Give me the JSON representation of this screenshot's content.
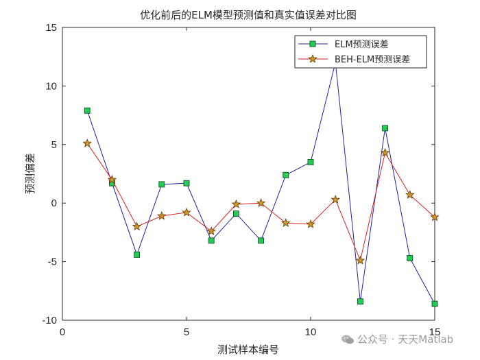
{
  "chart_data": {
    "type": "line",
    "title": "优化前后的ELM模型预测值和真实值误差对比图",
    "xlabel": "测试样本编号",
    "ylabel": "预测偏差",
    "xlim": [
      0,
      15
    ],
    "ylim": [
      -10,
      15
    ],
    "xticks": [
      0,
      5,
      10,
      15
    ],
    "yticks": [
      -10,
      -5,
      0,
      5,
      10,
      15
    ],
    "grid": false,
    "legend_position": "top-right",
    "x": [
      1,
      2,
      3,
      4,
      5,
      6,
      7,
      8,
      9,
      10,
      11,
      12,
      13,
      14,
      15
    ],
    "series": [
      {
        "name": "ELM预测误差",
        "color": "#1f1fa0",
        "marker": "square",
        "marker_color": "#22cc55",
        "values": [
          7.9,
          1.7,
          -4.4,
          1.6,
          1.7,
          -3.2,
          -0.9,
          -3.2,
          2.4,
          3.5,
          12.0,
          -8.4,
          6.4,
          -4.7,
          -8.6
        ]
      },
      {
        "name": "BEH-ELM预测误差",
        "color": "#d42020",
        "marker": "star",
        "marker_color": "#c8962c",
        "values": [
          5.1,
          2.0,
          -2.0,
          -1.1,
          -0.8,
          -2.4,
          -0.1,
          0.0,
          -1.7,
          -1.8,
          0.3,
          -4.9,
          4.3,
          0.7,
          -1.2
        ]
      }
    ]
  },
  "watermark": {
    "text": "公众号 · 天天Matlab",
    "icon": "wechat-icon"
  }
}
